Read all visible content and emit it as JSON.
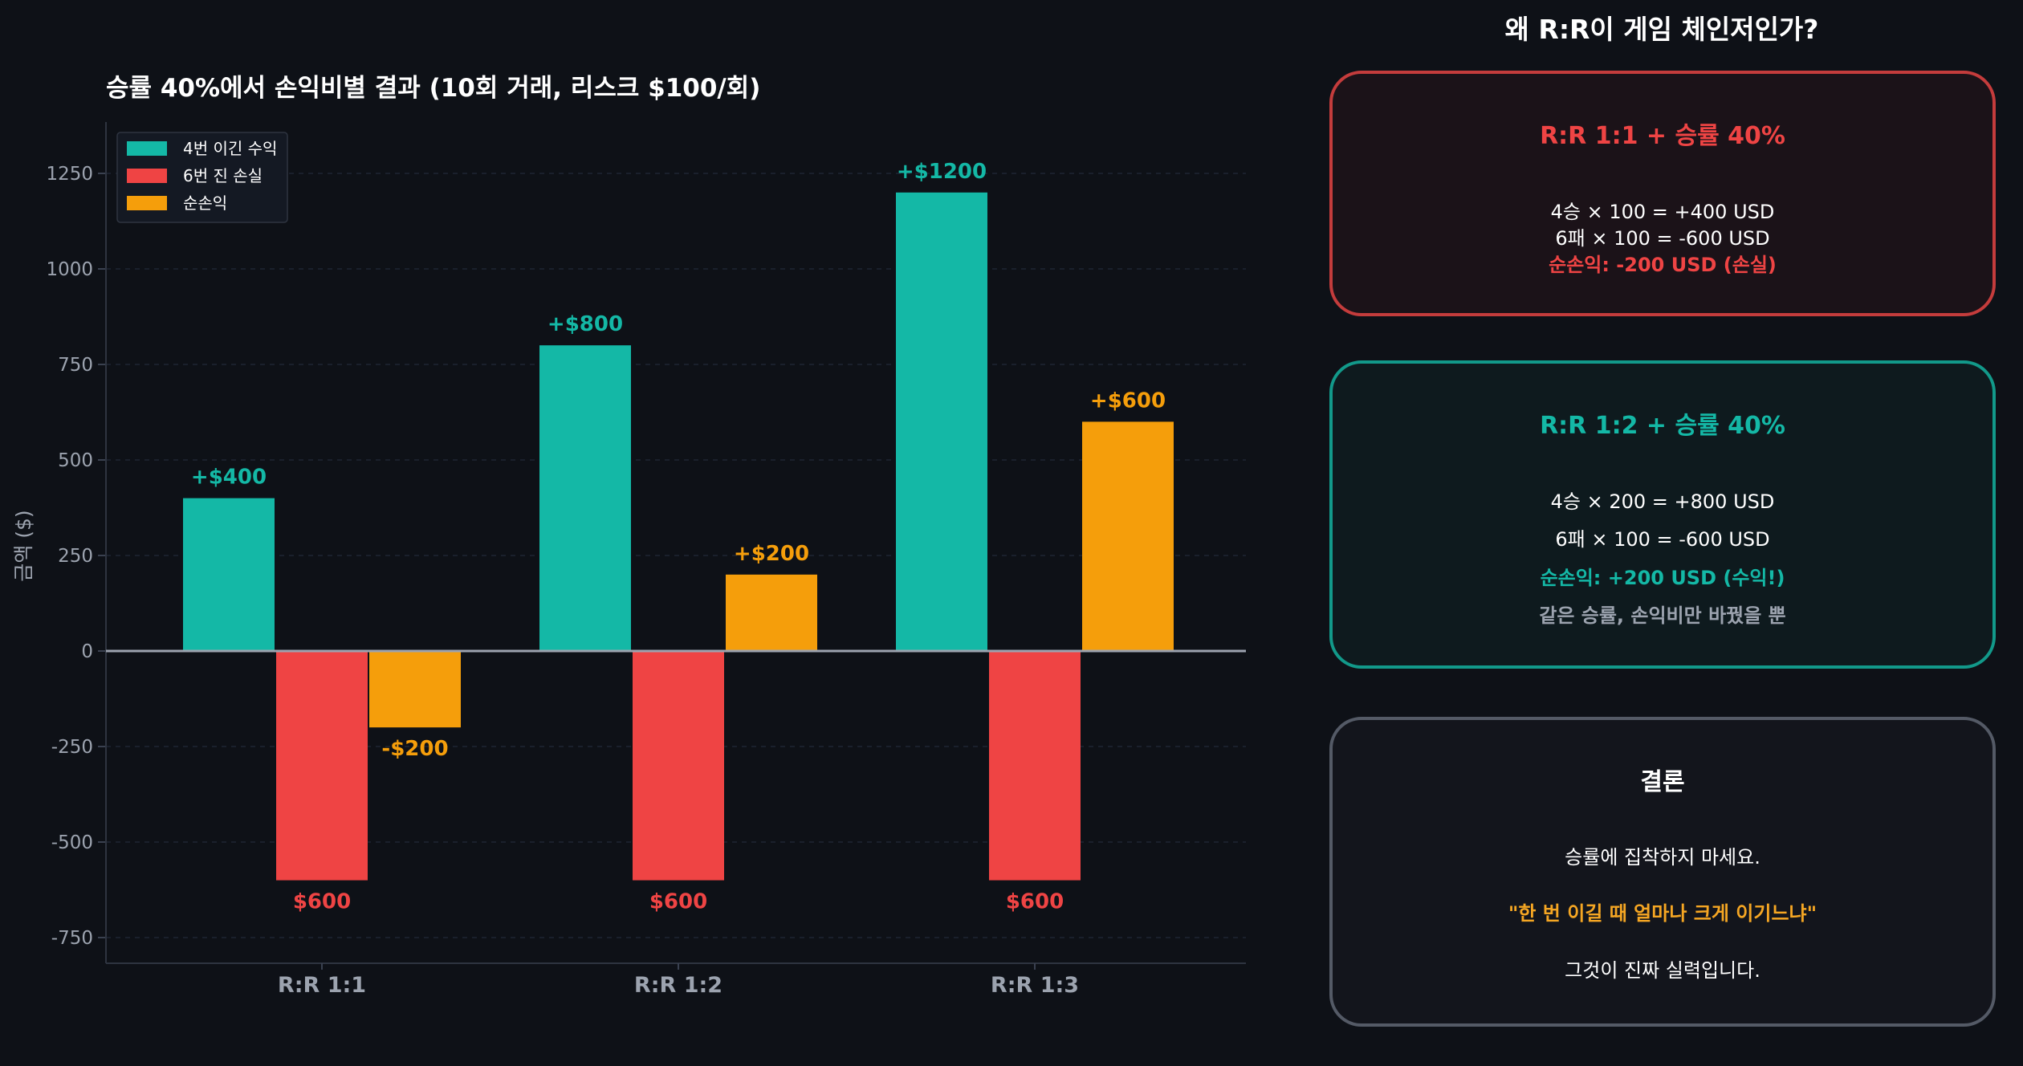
{
  "colors": {
    "background": "#0e1117",
    "wins": "#14b8a6",
    "losses": "#ef4444",
    "net": "#f59e0b",
    "text_muted": "#9ca3af",
    "grid": "#1f2533",
    "card_loss_border": "#c43c3c",
    "card_loss_bg": "#1b1218",
    "card_gain_border": "#12998a",
    "card_gain_bg": "#0e1a1e",
    "card_note_border": "#545a66",
    "card_note_bg": "#13151c"
  },
  "chart_data": {
    "type": "bar",
    "title": "승률 40%에서 손익비별 결과  (10회 거래, 리스크 $100/회)",
    "ylabel": "금액 ($)",
    "xlabel": "",
    "categories": [
      "R:R 1:1",
      "R:R 1:2",
      "R:R 1:3"
    ],
    "series": [
      {
        "name": "4번 이긴 수익",
        "values": [
          400,
          800,
          1200
        ],
        "labels": [
          "+$400",
          "+$800",
          "+$1200"
        ]
      },
      {
        "name": "6번 진 손실",
        "values": [
          -600,
          -600,
          -600
        ],
        "labels": [
          "$600",
          "$600",
          "$600"
        ]
      },
      {
        "name": "순손익",
        "values": [
          -200,
          200,
          600
        ],
        "labels": [
          "-$200",
          "+$200",
          "+$600"
        ]
      }
    ],
    "yticks": [
      1250,
      1000,
      750,
      500,
      250,
      0,
      -250,
      -500,
      -750
    ],
    "ytick_labels": [
      "1250",
      "1000",
      "750",
      "500",
      "250",
      "0",
      "-250",
      "-500",
      "-750"
    ],
    "ylim": [
      -820,
      1390
    ],
    "grid": true,
    "legend_position": "top-left"
  },
  "panel": {
    "title": "왜 R:R이 게임 체인저인가?",
    "card1": {
      "title": "R:R 1:1 + 승률 40%",
      "line1": "4승 × 100 = +400 USD",
      "line2": "6패 × 100 = -600 USD",
      "line3": "순손익: -200 USD (손실)"
    },
    "card2": {
      "title": "R:R 1:2 + 승률 40%",
      "line1": "4승 × 200 = +800 USD",
      "line2": "6패 × 100 = -600 USD",
      "line3": "순손익: +200 USD (수익!)",
      "line4": "같은 승률, 손익비만 바꿨을 뿐"
    },
    "card3": {
      "title": "결론",
      "line1": "승률에 집착하지 마세요.",
      "line2": "\"한 번 이길 때 얼마나 크게 이기느냐\"",
      "line3": "그것이 진짜 실력입니다."
    }
  }
}
